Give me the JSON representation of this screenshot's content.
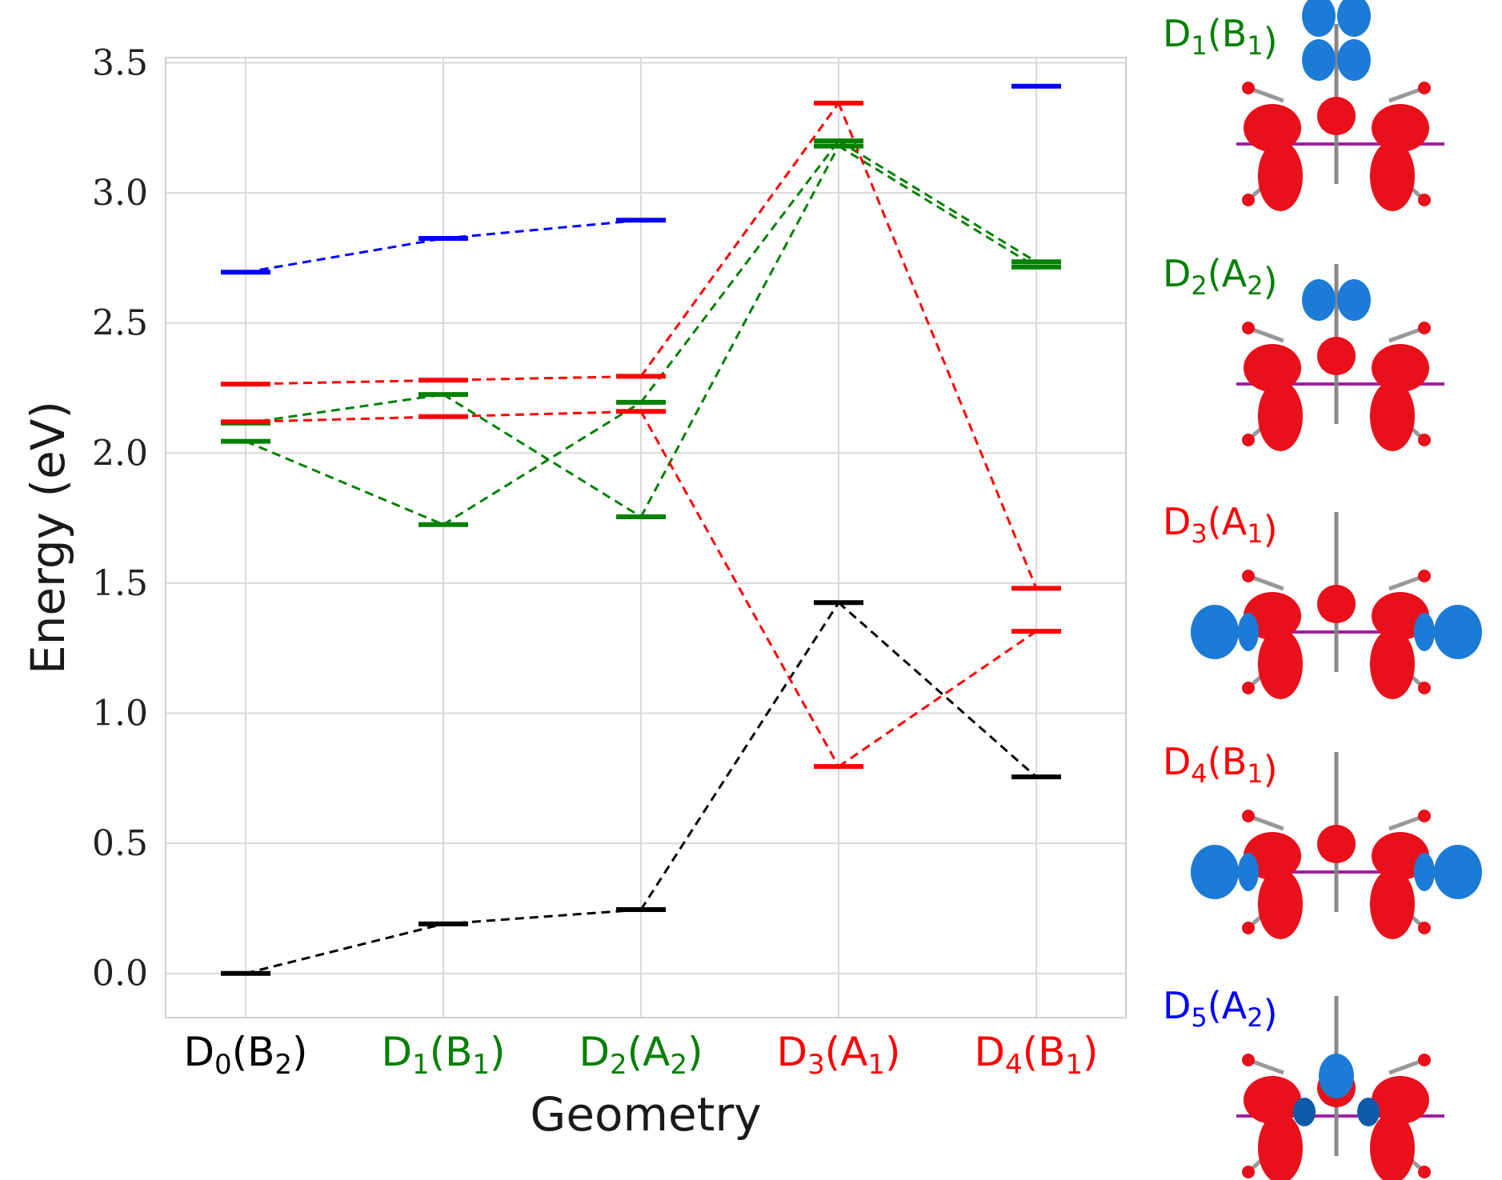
{
  "chart_data": {
    "type": "line",
    "title": "",
    "xlabel": "Geometry",
    "ylabel": "Energy (eV)",
    "ylim": [
      -0.17,
      3.52
    ],
    "yticks": [
      "0.0",
      "0.5",
      "1.0",
      "1.5",
      "2.0",
      "2.5",
      "3.0",
      "3.5"
    ],
    "categories": [
      {
        "base": "D",
        "sub": "0",
        "sym": "B",
        "symsub": "2",
        "color": "#000000"
      },
      {
        "base": "D",
        "sub": "1",
        "sym": "B",
        "symsub": "1",
        "color": "#008000"
      },
      {
        "base": "D",
        "sub": "2",
        "sym": "A",
        "symsub": "2",
        "color": "#008000"
      },
      {
        "base": "D",
        "sub": "3",
        "sym": "A",
        "symsub": "1",
        "color": "#ff0000"
      },
      {
        "base": "D",
        "sub": "4",
        "sym": "B",
        "symsub": "1",
        "color": "#ff0000"
      }
    ],
    "series": [
      {
        "name": "D0(B2) state",
        "color": "#000000",
        "values": [
          0.0,
          0.19,
          0.245,
          1.425,
          0.755
        ]
      },
      {
        "name": "D1(B1) state",
        "color": "#008000",
        "values": [
          2.045,
          1.725,
          2.195,
          3.2,
          2.735
        ]
      },
      {
        "name": "D2(A2) state",
        "color": "#008000",
        "values": [
          2.115,
          2.225,
          1.755,
          3.18,
          2.715
        ]
      },
      {
        "name": "D3(A1) state",
        "color": "#ff0000",
        "values": [
          2.12,
          2.14,
          2.16,
          0.795,
          1.315
        ]
      },
      {
        "name": "D4(B1) state",
        "color": "#ff0000",
        "values": [
          2.265,
          2.28,
          2.295,
          3.345,
          1.48
        ]
      },
      {
        "name": "D5(A2) state",
        "color": "#0000ff",
        "values": [
          2.695,
          2.825,
          2.895,
          null,
          3.41
        ]
      }
    ],
    "orbitals": [
      {
        "base": "D",
        "sub": "1",
        "sym": "B",
        "symsub": "1",
        "color": "#008000",
        "lobes": "top-both"
      },
      {
        "base": "D",
        "sub": "2",
        "sym": "A",
        "symsub": "2",
        "color": "#008000",
        "lobes": "top"
      },
      {
        "base": "D",
        "sub": "3",
        "sym": "A",
        "symsub": "1",
        "color": "#ff0000",
        "lobes": "side"
      },
      {
        "base": "D",
        "sub": "4",
        "sym": "B",
        "symsub": "1",
        "color": "#ff0000",
        "lobes": "side"
      },
      {
        "base": "D",
        "sub": "5",
        "sym": "A",
        "symsub": "2",
        "color": "#0000ff",
        "lobes": "blue"
      }
    ]
  }
}
